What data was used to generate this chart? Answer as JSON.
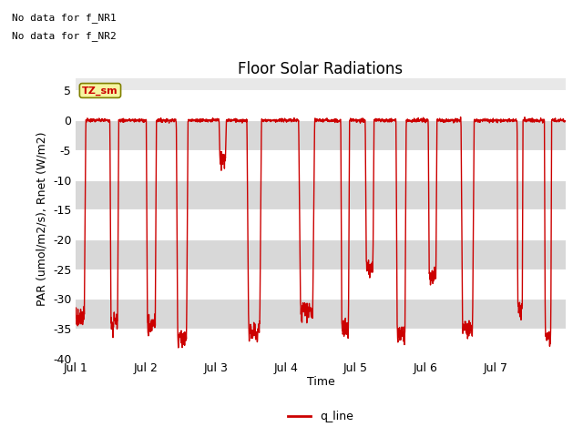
{
  "title": "Floor Solar Radiations",
  "xlabel": "Time",
  "ylabel": "PAR (umol/m2/s), Rnet (W/m2)",
  "ylim": [
    -40,
    7
  ],
  "yticks": [
    5,
    0,
    -5,
    -10,
    -15,
    -20,
    -25,
    -30,
    -35,
    -40
  ],
  "xtick_positions": [
    0,
    1,
    2,
    3,
    4,
    5,
    6,
    7
  ],
  "xtick_labels": [
    "Jul 1",
    "Jul 2",
    "Jul 3",
    "Jul 4",
    "Jul 5",
    "Jul 6",
    "Jul 7",
    ""
  ],
  "no_data_text1": "No data for f_NR1",
  "no_data_text2": "No data for f_NR2",
  "annotation_text": "TZ_sm",
  "line_color": "#cc0000",
  "legend_label": "q_line",
  "bg_dark": "#d8d8d8",
  "bg_light": "#e8e8e8",
  "title_fontsize": 12,
  "axis_fontsize": 9,
  "tick_fontsize": 9
}
